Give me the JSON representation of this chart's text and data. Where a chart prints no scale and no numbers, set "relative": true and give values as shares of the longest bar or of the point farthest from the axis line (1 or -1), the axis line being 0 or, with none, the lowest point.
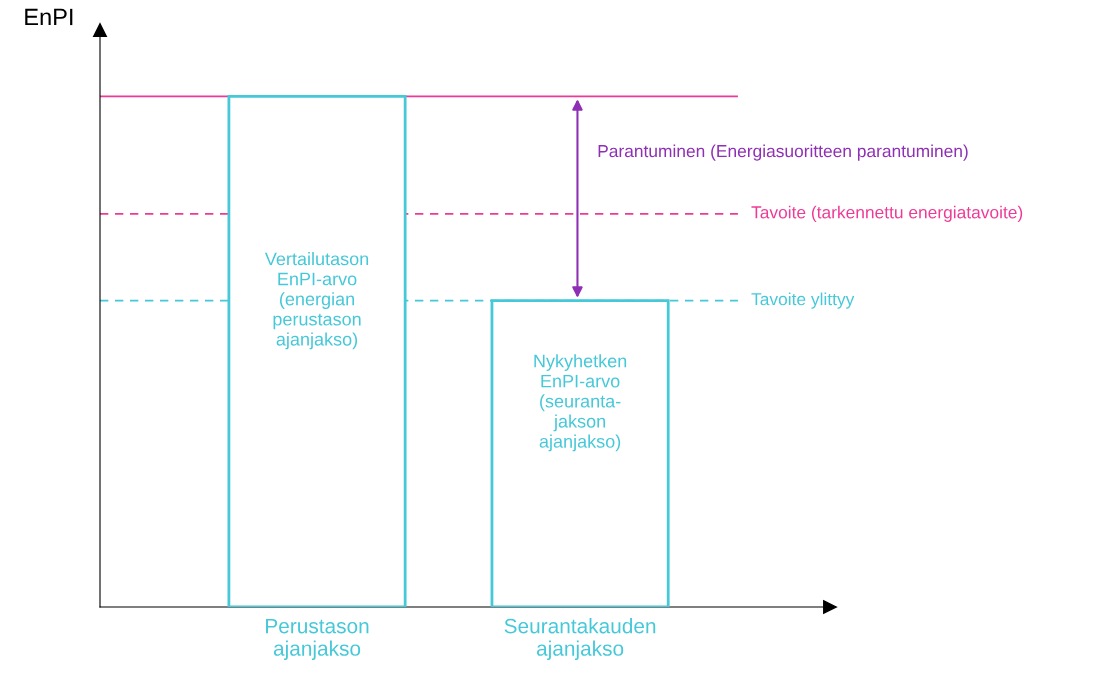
{
  "chart_data": {
    "type": "bar",
    "relative": true,
    "ylabel": "EnPI",
    "categories": [
      "Perustason\najanjakso",
      "Seurantakauden\najanjakso"
    ],
    "values": [
      1,
      0.6
    ],
    "color": "#45c8d8",
    "ref_lines": [
      {
        "axis": "y",
        "value": 1,
        "color": "#ee3a96",
        "line_style": "solid"
      },
      {
        "axis": "y",
        "value": 0.77,
        "label": "Tavoite (tarkennettu energiatavoite)",
        "color": "#ee3a96",
        "line_style": "dashed"
      },
      {
        "axis": "y",
        "value": 0.6,
        "label": "Tavoite ylittyy",
        "color": "#45c8d8",
        "line_style": "dashed"
      }
    ],
    "annotations": [
      "Parantuminen (Energiasuoritteen parantuminen)",
      "Vertailutason\nEnPI-arvo\n(energian\nperustason\najanjakso)",
      "Nykyhetken\nEnPI-arvo\n(seuranta-\njakson\najanjakso)"
    ],
    "grid": false,
    "legend": false
  }
}
